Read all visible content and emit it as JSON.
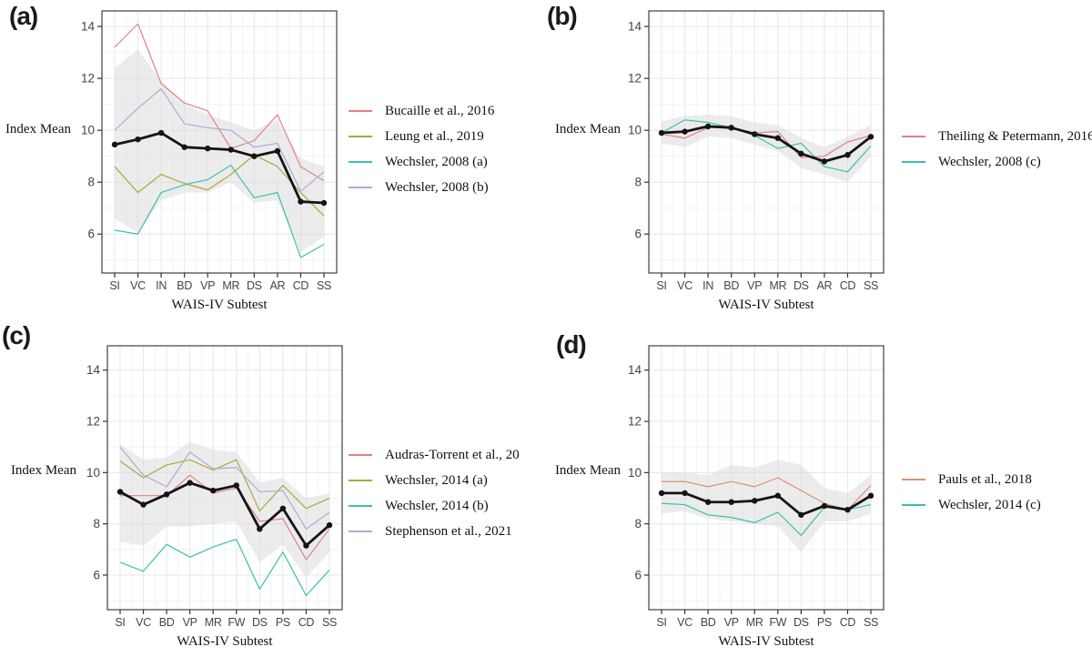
{
  "figure": {
    "y_axis_label": "Index Mean",
    "x_axis_label": "WAIS-IV Subtest"
  },
  "colors": {
    "mean_line": "#141414",
    "ribbon": "#d9d9d9",
    "grid_major": "#e7e7e7",
    "grid_minor": "#f3f3f3",
    "panel_border": "#3f3f3f",
    "tick_label": "#454545",
    "salmon": "#e0818a",
    "olive": "#a9aa3c",
    "teal": "#3abfae",
    "lavender": "#b2a7d8",
    "orange_salmon": "#dc9176"
  },
  "chart_data": [
    {
      "panel_label": "(a)",
      "type": "line",
      "xlabel": "WAIS-IV Subtest",
      "ylabel": "Index Mean",
      "categories": [
        "SI",
        "VC",
        "IN",
        "BD",
        "VP",
        "MR",
        "DS",
        "AR",
        "CD",
        "SS"
      ],
      "yticks": [
        6,
        8,
        10,
        12,
        14
      ],
      "ylim": [
        4.5,
        14.6
      ],
      "grid": true,
      "legend_position": "right",
      "mean_series": {
        "name": "Index Mean",
        "values": [
          9.45,
          9.65,
          9.9,
          9.35,
          9.3,
          9.25,
          9.0,
          9.2,
          7.25,
          7.2
        ]
      },
      "ribbon": {
        "lower": [
          6.6,
          6.05,
          7.3,
          7.6,
          7.6,
          8.0,
          7.2,
          7.3,
          5.3,
          5.9
        ],
        "upper": [
          12.4,
          13.1,
          11.9,
          11.0,
          10.6,
          10.3,
          10.0,
          10.4,
          8.9,
          8.6
        ]
      },
      "series": [
        {
          "name": "Bucaille et al., 2016",
          "color": "#e0818a",
          "values": [
            13.2,
            14.1,
            11.8,
            11.05,
            10.75,
            9.3,
            9.6,
            10.6,
            8.6,
            8.05
          ]
        },
        {
          "name": "Leung et al., 2019",
          "color": "#a9aa3c",
          "values": [
            8.6,
            7.6,
            8.3,
            7.95,
            7.7,
            8.3,
            9.05,
            8.6,
            7.6,
            6.7
          ]
        },
        {
          "name": "Wechsler, 2008 (a)",
          "color": "#3abfae",
          "values": [
            6.15,
            6.0,
            7.6,
            7.9,
            8.1,
            8.65,
            7.4,
            7.6,
            5.1,
            5.6
          ]
        },
        {
          "name": "Wechsler, 2008 (b)",
          "color": "#b2a7d8",
          "values": [
            10.0,
            10.85,
            11.6,
            10.25,
            10.1,
            10.0,
            9.35,
            9.5,
            7.65,
            8.4
          ]
        }
      ]
    },
    {
      "panel_label": "(b)",
      "type": "line",
      "xlabel": "WAIS-IV Subtest",
      "ylabel": "Index Mean",
      "categories": [
        "SI",
        "VC",
        "IN",
        "BD",
        "VP",
        "MR",
        "DS",
        "AR",
        "CD",
        "SS"
      ],
      "yticks": [
        6,
        8,
        10,
        12,
        14
      ],
      "ylim": [
        4.5,
        14.6
      ],
      "grid": true,
      "legend_position": "right",
      "mean_series": {
        "name": "Index Mean",
        "values": [
          9.9,
          9.95,
          10.15,
          10.1,
          9.85,
          9.7,
          9.1,
          8.8,
          9.05,
          9.75
        ]
      },
      "ribbon": {
        "lower": [
          9.5,
          9.35,
          9.75,
          9.7,
          9.45,
          9.2,
          8.55,
          8.3,
          8.0,
          9.0
        ],
        "upper": [
          10.35,
          10.55,
          10.6,
          10.55,
          10.3,
          10.2,
          9.7,
          9.35,
          9.75,
          10.2
        ]
      },
      "series": [
        {
          "name": "Theiling & Petermann, 2016",
          "color": "#e0818a",
          "values": [
            9.85,
            9.7,
            10.1,
            10.1,
            9.9,
            9.95,
            8.95,
            9.0,
            9.55,
            9.8
          ]
        },
        {
          "name": "Wechsler, 2008 (c)",
          "color": "#3abfae",
          "values": [
            9.9,
            10.4,
            10.3,
            10.1,
            9.8,
            9.3,
            9.5,
            8.6,
            8.4,
            9.4
          ]
        }
      ]
    },
    {
      "panel_label": "(c)",
      "type": "line",
      "xlabel": "WAIS-IV Subtest",
      "ylabel": "Index Mean",
      "categories": [
        "SI",
        "VC",
        "BD",
        "VP",
        "MR",
        "FW",
        "DS",
        "PS",
        "CD",
        "SS"
      ],
      "yticks": [
        6,
        8,
        10,
        12,
        14
      ],
      "ylim": [
        4.65,
        14.95
      ],
      "grid": true,
      "legend_position": "right",
      "mean_series": {
        "name": "Index Mean",
        "values": [
          9.25,
          8.75,
          9.15,
          9.6,
          9.3,
          9.5,
          7.8,
          8.6,
          7.15,
          7.95
        ]
      },
      "ribbon": {
        "lower": [
          7.3,
          7.15,
          7.9,
          7.9,
          8.0,
          8.1,
          6.5,
          7.2,
          5.9,
          6.9
        ],
        "upper": [
          11.1,
          10.5,
          10.6,
          11.2,
          10.9,
          10.8,
          9.6,
          9.8,
          9.0,
          9.2
        ]
      },
      "series": [
        {
          "name": "Audras-Torrent et al., 20",
          "color": "#e0818a",
          "values": [
            9.1,
            9.1,
            9.1,
            9.9,
            9.2,
            9.4,
            8.1,
            8.2,
            6.6,
            7.8
          ]
        },
        {
          "name": "Wechsler, 2014 (a)",
          "color": "#a9aa3c",
          "values": [
            10.45,
            9.8,
            10.3,
            10.5,
            10.1,
            10.5,
            8.5,
            9.5,
            8.6,
            9.0
          ]
        },
        {
          "name": "Wechsler, 2014 (b)",
          "color": "#3abfae",
          "values": [
            6.5,
            6.15,
            7.2,
            6.7,
            7.1,
            7.4,
            5.45,
            6.9,
            5.2,
            6.2
          ]
        },
        {
          "name": "Stephenson et al., 2021",
          "color": "#b2a7d8",
          "values": [
            11.0,
            9.9,
            9.45,
            10.8,
            10.15,
            10.2,
            9.25,
            9.3,
            7.8,
            8.45
          ]
        }
      ]
    },
    {
      "panel_label": "(d)",
      "type": "line",
      "xlabel": "WAIS-IV Subtest",
      "ylabel": "Index Mean",
      "categories": [
        "SI",
        "VC",
        "BD",
        "VP",
        "MR",
        "FW",
        "DS",
        "PS",
        "CD",
        "SS"
      ],
      "yticks": [
        6,
        8,
        10,
        12,
        14
      ],
      "ylim": [
        4.65,
        14.95
      ],
      "grid": true,
      "legend_position": "right",
      "mean_series": {
        "name": "Index Mean",
        "values": [
          9.2,
          9.2,
          8.85,
          8.85,
          8.9,
          9.1,
          8.35,
          8.7,
          8.55,
          9.1
        ]
      },
      "ribbon": {
        "lower": [
          8.4,
          8.5,
          8.2,
          8.1,
          8.0,
          7.9,
          6.9,
          8.1,
          8.1,
          8.4
        ],
        "upper": [
          10.0,
          10.0,
          9.9,
          10.3,
          10.2,
          10.5,
          10.3,
          9.4,
          9.2,
          9.9
        ]
      },
      "series": [
        {
          "name": "Pauls et al., 2018",
          "color": "#dc9176",
          "values": [
            9.65,
            9.65,
            9.45,
            9.65,
            9.45,
            9.8,
            9.3,
            8.8,
            8.55,
            9.5
          ]
        },
        {
          "name": "Wechsler, 2014 (c)",
          "color": "#3abfae",
          "values": [
            8.8,
            8.75,
            8.35,
            8.25,
            8.05,
            8.45,
            7.55,
            8.65,
            8.55,
            8.75
          ]
        }
      ]
    }
  ]
}
